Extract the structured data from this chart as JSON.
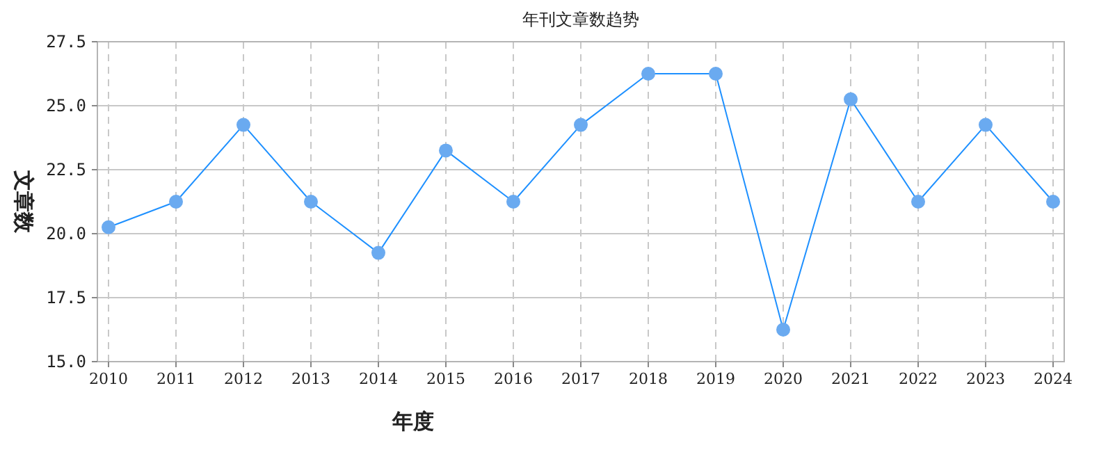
{
  "chart_data": {
    "type": "line",
    "title": "年刊文章数趋势",
    "xlabel": "年度",
    "ylabel": "文章数",
    "categories": [
      "2010",
      "2011",
      "2012",
      "2013",
      "2014",
      "2015",
      "2016",
      "2017",
      "2018",
      "2019",
      "2020",
      "2021",
      "2022",
      "2023",
      "2024"
    ],
    "series": [
      {
        "color": "#1e90ff",
        "values": [
          20.25,
          21.25,
          24.25,
          21.25,
          19.25,
          23.25,
          21.25,
          24.25,
          26.25,
          26.25,
          16.25,
          25.25,
          21.25,
          24.25,
          21.25
        ]
      }
    ],
    "ylim": [
      15,
      27.5
    ],
    "yticks": [
      {
        "value": 15,
        "label": "15.0"
      },
      {
        "value": 17.5,
        "label": "17.5"
      },
      {
        "value": 20,
        "label": "20.0"
      },
      {
        "value": 22.5,
        "label": "22.5"
      },
      {
        "value": 25,
        "label": "25.0"
      },
      {
        "value": 27.5,
        "label": "27.5"
      }
    ],
    "grid": true,
    "marker": "circle"
  }
}
